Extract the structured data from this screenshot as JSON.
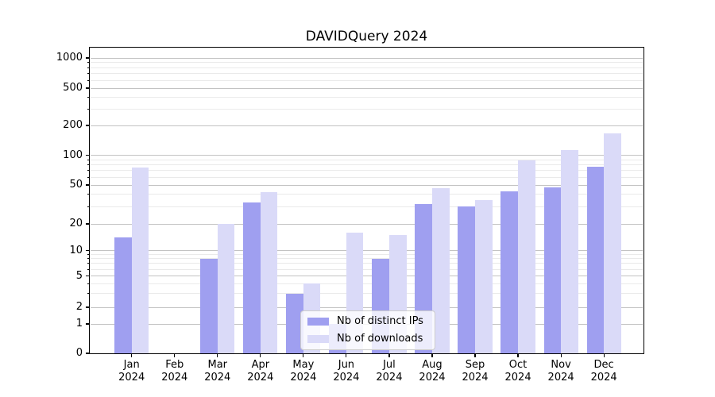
{
  "chart_data": {
    "type": "bar",
    "title": "DAVIDQuery 2024",
    "categories": [
      "Jan 2024",
      "Feb 2024",
      "Mar 2024",
      "Apr 2024",
      "May 2024",
      "Jun 2024",
      "Jul 2024",
      "Aug 2024",
      "Sep 2024",
      "Oct 2024",
      "Nov 2024",
      "Dec 2024"
    ],
    "x_tick_months": [
      "Jan",
      "Feb",
      "Mar",
      "Apr",
      "May",
      "Jun",
      "Jul",
      "Aug",
      "Sep",
      "Oct",
      "Nov",
      "Dec"
    ],
    "x_tick_year": "2024",
    "y_tick_labels": [
      "0",
      "1",
      "2",
      "5",
      "10",
      "20",
      "50",
      "100",
      "200",
      "500",
      "1000"
    ],
    "y_ticks": [
      0,
      1,
      2,
      5,
      10,
      20,
      50,
      100,
      200,
      500,
      1000
    ],
    "ylim": [
      0,
      1000
    ],
    "yscale": "symlog",
    "grid": "horizontal major and minor gridlines",
    "legend_position": "lower center",
    "series": [
      {
        "name": "Nb of distinct IPs",
        "color": "#9f9ff0",
        "values": [
          14,
          0,
          8,
          33,
          3,
          1,
          8,
          32,
          30,
          43,
          47,
          76
        ]
      },
      {
        "name": "Nb of downloads",
        "color": "#dadaf8",
        "values": [
          75,
          0,
          20,
          42,
          4,
          16,
          15,
          46,
          35,
          88,
          112,
          165
        ]
      }
    ]
  }
}
